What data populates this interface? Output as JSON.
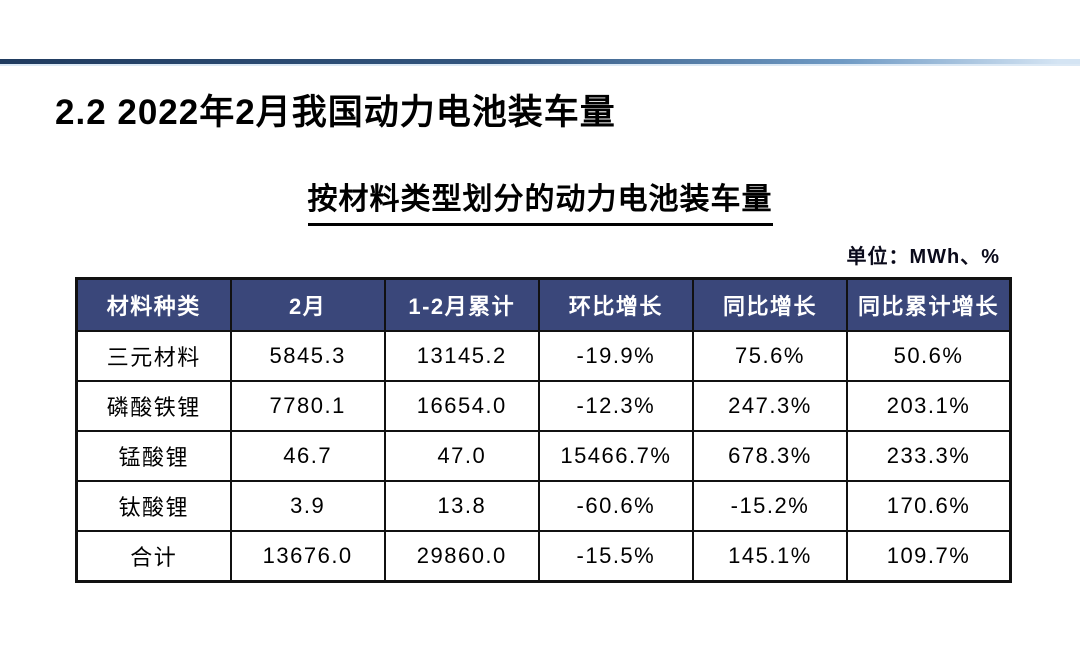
{
  "slide": {
    "title": "2.2 2022年2月我国动力电池装车量",
    "subtitle": "按材料类型划分的动力电池装车量",
    "unit_label": "单位：MWh、%"
  },
  "colors": {
    "header_bg": "#3A477A",
    "table_border": "#111111",
    "accent_bar_left": "#203b5f",
    "accent_bar_right": "#d4e4f3",
    "header_text": "#ffffff",
    "body_text": "#000000"
  },
  "chart_data": {
    "type": "table",
    "title": "按材料类型划分的动力电池装车量",
    "unit": "MWh、%",
    "headers": [
      "材料种类",
      "2月",
      "1-2月累计",
      "环比增长",
      "同比增长",
      "同比累计增长"
    ],
    "rows": [
      [
        "三元材料",
        "5845.3",
        "13145.2",
        "-19.9%",
        "75.6%",
        "50.6%"
      ],
      [
        "磷酸铁锂",
        "7780.1",
        "16654.0",
        "-12.3%",
        "247.3%",
        "203.1%"
      ],
      [
        "锰酸锂",
        "46.7",
        "47.0",
        "15466.7%",
        "678.3%",
        "233.3%"
      ],
      [
        "钛酸锂",
        "3.9",
        "13.8",
        "-60.6%",
        "-15.2%",
        "170.6%"
      ],
      [
        "合计",
        "13676.0",
        "29860.0",
        "-15.5%",
        "145.1%",
        "109.7%"
      ]
    ]
  }
}
